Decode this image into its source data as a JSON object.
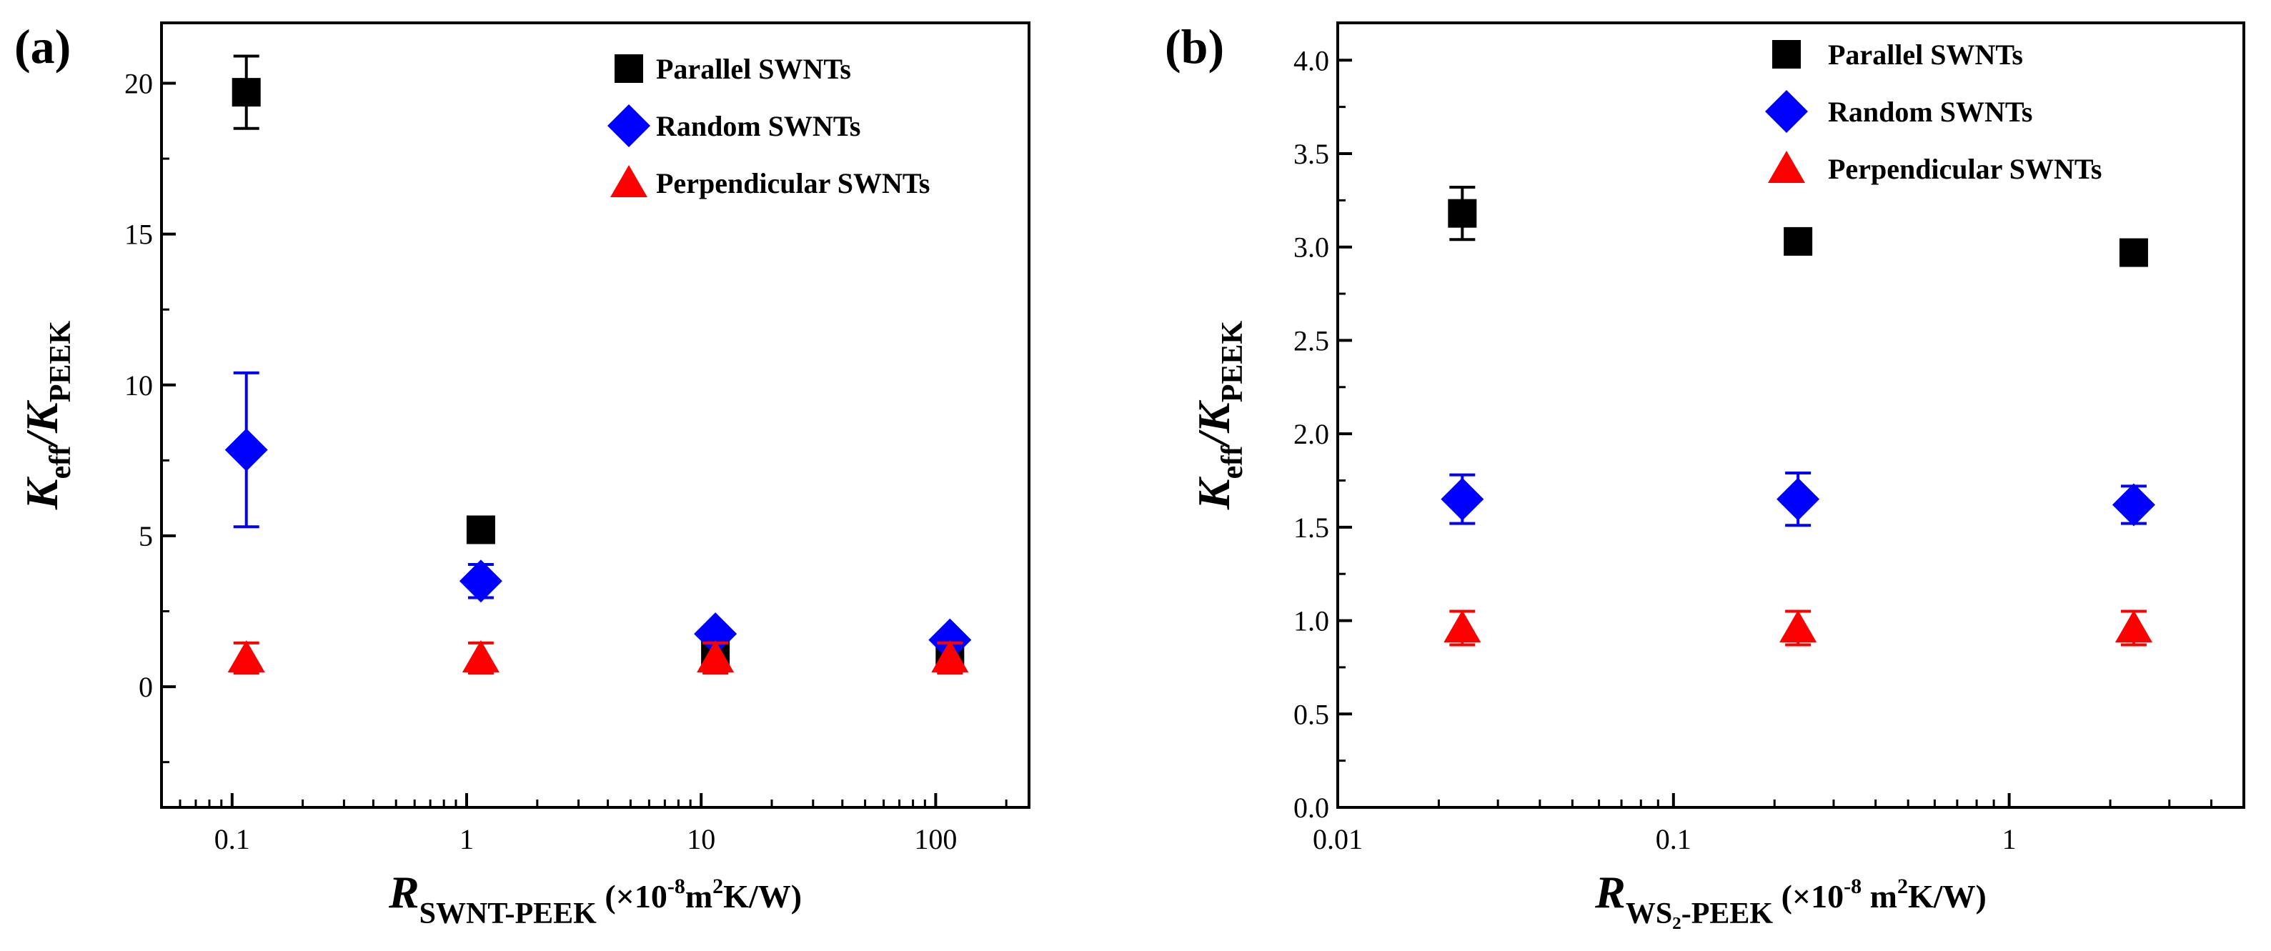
{
  "colors": {
    "parallel": "#000000",
    "random": "#0000ff",
    "perpendicular": "#ff0000"
  },
  "chart_data": [
    {
      "panel_label": "(a)",
      "type": "scatter",
      "xscale": "log",
      "xlim": [
        0.05,
        250
      ],
      "ylim": [
        -4,
        22
      ],
      "grid": false,
      "legend_position": "top-right",
      "xticks": [
        {
          "value": 0.1,
          "label": "0.1"
        },
        {
          "value": 1,
          "label": "1"
        },
        {
          "value": 10,
          "label": "10"
        },
        {
          "value": 100,
          "label": "100"
        }
      ],
      "yticks": [
        {
          "value": 0,
          "label": "0"
        },
        {
          "value": 5,
          "label": "5"
        },
        {
          "value": 10,
          "label": "10"
        },
        {
          "value": 15,
          "label": "15"
        },
        {
          "value": 20,
          "label": "20"
        }
      ],
      "y_minor": [
        -2.5,
        2.5,
        7.5,
        12.5,
        17.5
      ],
      "ylabel": {
        "main": "K",
        "sub1": "eff",
        "slash": "/K",
        "sub2": "PEEK"
      },
      "xlabel": {
        "main": "R",
        "sub": "SWNT-PEEK",
        "unit_pre": " (×10",
        "sup1": "-8",
        "unit_mid": "m",
        "sup2": "2",
        "unit_post": "K/W)"
      },
      "series": [
        {
          "name": "Parallel SWNTs",
          "key": "parallel",
          "marker": "square",
          "x": [
            0.115,
            1.15,
            11.5,
            115
          ],
          "y": [
            19.7,
            5.2,
            1.2,
            1.1
          ],
          "err": [
            1.2,
            0.2,
            0.1,
            0.1
          ]
        },
        {
          "name": "Random SWNTs",
          "key": "random",
          "marker": "diamond",
          "x": [
            0.115,
            1.15,
            11.5,
            115
          ],
          "y": [
            7.85,
            3.5,
            1.75,
            1.55
          ],
          "err": [
            2.55,
            0.55,
            0.15,
            0.1
          ]
        },
        {
          "name": "Perpendicular SWNTs",
          "key": "perpendicular",
          "marker": "triangle",
          "x": [
            0.115,
            1.15,
            11.5,
            115
          ],
          "y": [
            0.95,
            0.95,
            0.95,
            0.95
          ],
          "err": [
            0.5,
            0.5,
            0.5,
            0.5
          ]
        }
      ]
    },
    {
      "panel_label": "(b)",
      "type": "scatter",
      "xscale": "log",
      "xlim": [
        0.01,
        5
      ],
      "ylim": [
        0,
        4.2
      ],
      "grid": false,
      "legend_position": "top-right",
      "xticks": [
        {
          "value": 0.01,
          "label": "0.01"
        },
        {
          "value": 0.1,
          "label": "0.1"
        },
        {
          "value": 1,
          "label": "1"
        }
      ],
      "yticks": [
        {
          "value": 0.0,
          "label": "0.0"
        },
        {
          "value": 0.5,
          "label": "0.5"
        },
        {
          "value": 1.0,
          "label": "1.0"
        },
        {
          "value": 1.5,
          "label": "1.5"
        },
        {
          "value": 2.0,
          "label": "2.0"
        },
        {
          "value": 2.5,
          "label": "2.5"
        },
        {
          "value": 3.0,
          "label": "3.0"
        },
        {
          "value": 3.5,
          "label": "3.5"
        },
        {
          "value": 4.0,
          "label": "4.0"
        }
      ],
      "y_minor": [
        0.25,
        0.75,
        1.25,
        1.75,
        2.25,
        2.75,
        3.25,
        3.75
      ],
      "ylabel": {
        "main": "K",
        "sub1": "eff",
        "slash": "/K",
        "sub2": "PEEK"
      },
      "xlabel": {
        "main": "R",
        "sub": "WS₂-PEEK",
        "unit_pre": " (×10",
        "sup1": "-8",
        "unit_mid": " m",
        "sup2": "2",
        "unit_post": "K/W)"
      },
      "series": [
        {
          "name": "Parallel SWNTs",
          "key": "parallel",
          "marker": "square",
          "x": [
            0.0235,
            0.235,
            2.35
          ],
          "y": [
            3.18,
            3.03,
            2.97
          ],
          "err": [
            0.14,
            0.03,
            0.03
          ]
        },
        {
          "name": "Random SWNTs",
          "key": "random",
          "marker": "diamond",
          "x": [
            0.0235,
            0.235,
            2.35
          ],
          "y": [
            1.65,
            1.65,
            1.62
          ],
          "err": [
            0.13,
            0.14,
            0.1
          ]
        },
        {
          "name": "Perpendicular SWNTs",
          "key": "perpendicular",
          "marker": "triangle",
          "x": [
            0.0235,
            0.235,
            2.35
          ],
          "y": [
            0.96,
            0.96,
            0.96
          ],
          "err": [
            0.09,
            0.09,
            0.09
          ]
        }
      ]
    }
  ]
}
